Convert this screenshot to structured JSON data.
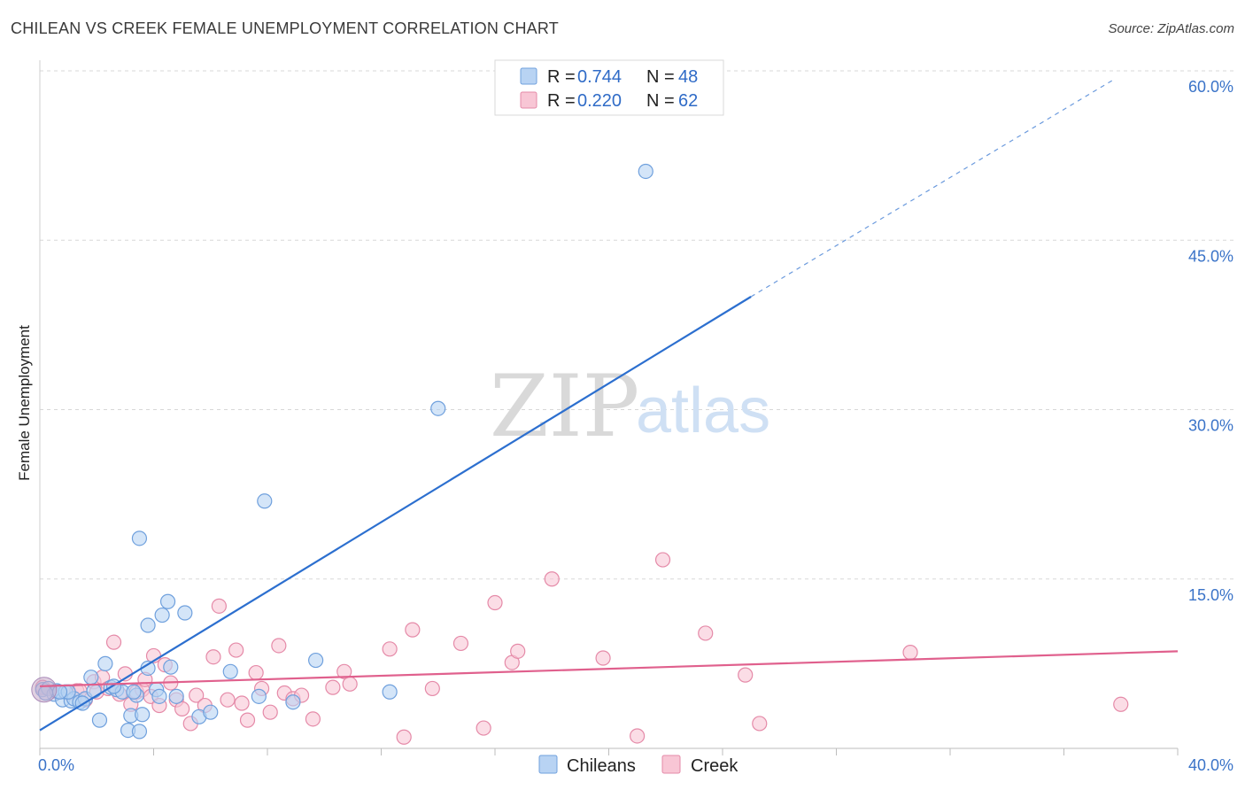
{
  "header": {
    "title": "CHILEAN VS CREEK FEMALE UNEMPLOYMENT CORRELATION CHART",
    "source": "Source: ZipAtlas.com"
  },
  "watermark": {
    "zip": "ZIP",
    "atlas": "atlas"
  },
  "legend_top": {
    "rows": [
      {
        "r_label": "R = ",
        "r_value": "0.744",
        "n_label": "N = ",
        "n_value": "48"
      },
      {
        "r_label": "R = ",
        "r_value": "0.220",
        "n_label": "N = ",
        "n_value": "62"
      }
    ]
  },
  "legend_bottom": {
    "items": [
      "Chileans",
      "Creek"
    ]
  },
  "colors": {
    "chileans_fill": "#b8d3f3",
    "chileans_stroke": "#6fa0dd",
    "chileans_line": "#2c6fcf",
    "creek_fill": "#f8c6d5",
    "creek_stroke": "#e58aa8",
    "creek_line": "#e0608d",
    "grid": "#d8d8d8",
    "tick_label": "#3a73c8"
  },
  "chart_data": {
    "type": "scatter",
    "title": "CHILEAN VS CREEK FEMALE UNEMPLOYMENT CORRELATION CHART",
    "xlabel": "",
    "ylabel": "Female Unemployment",
    "xlim": [
      0,
      40
    ],
    "ylim": [
      0,
      60
    ],
    "x_tick_labels": [
      "0.0%",
      "40.0%"
    ],
    "y_ticks": [
      15,
      30,
      45,
      60
    ],
    "y_tick_labels": [
      "15.0%",
      "30.0%",
      "45.0%",
      "60.0%"
    ],
    "series": [
      {
        "name": "Chileans",
        "r": 0.744,
        "n": 48,
        "trend": {
          "x0": 0,
          "y0": 1.6,
          "x1": 25.0,
          "y1": 40.0,
          "dashed_to_x": 37.8,
          "dashed_to_y": 59.3
        },
        "points": [
          [
            0.1,
            5.2
          ],
          [
            0.3,
            5.3
          ],
          [
            0.5,
            4.8
          ],
          [
            0.6,
            5.1
          ],
          [
            0.8,
            4.3
          ],
          [
            0.9,
            5.0
          ],
          [
            1.1,
            4.2
          ],
          [
            1.2,
            4.4
          ],
          [
            1.4,
            4.1
          ],
          [
            1.6,
            4.4
          ],
          [
            1.8,
            6.3
          ],
          [
            1.9,
            5.1
          ],
          [
            2.1,
            2.5
          ],
          [
            2.3,
            7.5
          ],
          [
            2.5,
            5.4
          ],
          [
            2.7,
            5.2
          ],
          [
            2.9,
            5.0
          ],
          [
            3.1,
            1.6
          ],
          [
            3.2,
            2.9
          ],
          [
            3.4,
            4.7
          ],
          [
            3.5,
            1.5
          ],
          [
            3.6,
            3.0
          ],
          [
            3.5,
            18.6
          ],
          [
            3.8,
            7.1
          ],
          [
            3.8,
            10.9
          ],
          [
            4.1,
            5.2
          ],
          [
            4.2,
            4.6
          ],
          [
            4.3,
            11.8
          ],
          [
            4.5,
            13.0
          ],
          [
            4.6,
            7.2
          ],
          [
            4.8,
            4.6
          ],
          [
            5.1,
            12.0
          ],
          [
            5.6,
            2.8
          ],
          [
            6.0,
            3.2
          ],
          [
            6.7,
            6.8
          ],
          [
            7.7,
            4.6
          ],
          [
            7.9,
            21.9
          ],
          [
            8.9,
            4.1
          ],
          [
            9.7,
            7.8
          ],
          [
            12.3,
            5.0
          ],
          [
            14.0,
            30.1
          ],
          [
            21.3,
            51.1
          ],
          [
            0.2,
            4.9
          ],
          [
            1.0,
            5.0
          ],
          [
            2.6,
            5.5
          ],
          [
            1.5,
            4.0
          ],
          [
            0.7,
            5.0
          ],
          [
            3.3,
            5.0
          ]
        ]
      },
      {
        "name": "Creek",
        "r": 0.22,
        "n": 62,
        "trend": {
          "x0": 0,
          "y0": 5.5,
          "x1": 40,
          "y1": 8.6
        },
        "points": [
          [
            0.1,
            5.4
          ],
          [
            0.6,
            5.0
          ],
          [
            1.0,
            4.9
          ],
          [
            1.3,
            5.1
          ],
          [
            1.6,
            4.3
          ],
          [
            1.9,
            5.9
          ],
          [
            2.0,
            5.0
          ],
          [
            2.2,
            6.3
          ],
          [
            2.4,
            5.3
          ],
          [
            2.6,
            9.4
          ],
          [
            2.8,
            4.8
          ],
          [
            3.0,
            6.6
          ],
          [
            3.2,
            3.9
          ],
          [
            3.4,
            5.0
          ],
          [
            3.6,
            5.2
          ],
          [
            3.7,
            6.1
          ],
          [
            3.9,
            4.6
          ],
          [
            4.0,
            8.2
          ],
          [
            4.2,
            3.8
          ],
          [
            4.4,
            7.4
          ],
          [
            4.6,
            5.8
          ],
          [
            4.8,
            4.3
          ],
          [
            5.0,
            3.5
          ],
          [
            5.3,
            2.2
          ],
          [
            5.5,
            4.7
          ],
          [
            5.8,
            3.8
          ],
          [
            6.1,
            8.1
          ],
          [
            6.3,
            12.6
          ],
          [
            6.6,
            4.3
          ],
          [
            6.9,
            8.7
          ],
          [
            7.1,
            4.0
          ],
          [
            7.3,
            2.5
          ],
          [
            7.6,
            6.7
          ],
          [
            7.8,
            5.3
          ],
          [
            8.1,
            3.2
          ],
          [
            8.4,
            9.1
          ],
          [
            8.6,
            4.9
          ],
          [
            8.9,
            4.4
          ],
          [
            9.2,
            4.7
          ],
          [
            9.6,
            2.6
          ],
          [
            10.3,
            5.4
          ],
          [
            10.7,
            6.8
          ],
          [
            10.9,
            5.7
          ],
          [
            12.3,
            8.8
          ],
          [
            12.8,
            1.0
          ],
          [
            13.1,
            10.5
          ],
          [
            13.8,
            5.3
          ],
          [
            14.8,
            9.3
          ],
          [
            15.6,
            1.8
          ],
          [
            16.0,
            12.9
          ],
          [
            16.6,
            7.6
          ],
          [
            16.8,
            8.6
          ],
          [
            18.0,
            15.0
          ],
          [
            19.8,
            8.0
          ],
          [
            21.0,
            1.1
          ],
          [
            21.9,
            16.7
          ],
          [
            23.4,
            10.2
          ],
          [
            24.8,
            6.5
          ],
          [
            25.3,
            2.2
          ],
          [
            30.6,
            8.5
          ],
          [
            38.0,
            3.9
          ],
          [
            1.4,
            5.1
          ]
        ]
      }
    ]
  }
}
